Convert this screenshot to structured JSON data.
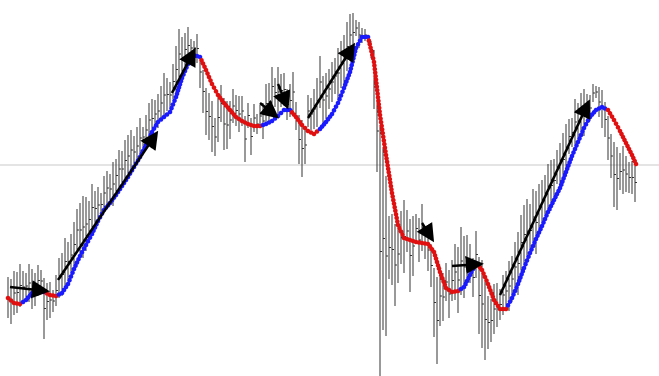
{
  "chart_data": {
    "type": "line",
    "title": "",
    "xlabel": "",
    "ylabel": "",
    "grid": false,
    "legend": "none",
    "colors": {
      "bars": "#333333",
      "up": "#1a1aff",
      "down": "#e01010",
      "arrow": "#000000",
      "level": "#c8c8c8"
    },
    "level_y": 165,
    "xlim": [
      0,
      640
    ],
    "ylim": [
      375,
      10
    ],
    "price": [
      [
        8,
        298
      ],
      [
        14,
        303
      ],
      [
        20,
        304
      ],
      [
        26,
        300
      ],
      [
        32,
        293
      ],
      [
        38,
        291
      ],
      [
        44,
        292
      ],
      [
        50,
        295
      ],
      [
        56,
        296
      ],
      [
        62,
        293
      ],
      [
        68,
        284
      ],
      [
        74,
        269
      ],
      [
        80,
        256
      ],
      [
        86,
        245
      ],
      [
        92,
        234
      ],
      [
        98,
        221
      ],
      [
        104,
        210
      ],
      [
        110,
        203
      ],
      [
        116,
        195
      ],
      [
        122,
        186
      ],
      [
        128,
        177
      ],
      [
        134,
        167
      ],
      [
        140,
        157
      ],
      [
        146,
        145
      ],
      [
        152,
        132
      ],
      [
        158,
        122
      ],
      [
        164,
        117
      ],
      [
        170,
        112
      ],
      [
        176,
        97
      ],
      [
        182,
        78
      ],
      [
        188,
        64
      ],
      [
        194,
        55
      ],
      [
        200,
        57
      ],
      [
        206,
        70
      ],
      [
        212,
        84
      ],
      [
        218,
        95
      ],
      [
        224,
        103
      ],
      [
        230,
        110
      ],
      [
        236,
        117
      ],
      [
        242,
        121
      ],
      [
        248,
        124
      ],
      [
        254,
        126
      ],
      [
        260,
        126
      ],
      [
        266,
        124
      ],
      [
        272,
        121
      ],
      [
        278,
        116
      ],
      [
        284,
        110
      ],
      [
        290,
        110
      ],
      [
        296,
        117
      ],
      [
        302,
        125
      ],
      [
        308,
        131
      ],
      [
        314,
        134
      ],
      [
        320,
        129
      ],
      [
        326,
        122
      ],
      [
        332,
        114
      ],
      [
        338,
        103
      ],
      [
        344,
        88
      ],
      [
        350,
        72
      ],
      [
        356,
        48
      ],
      [
        362,
        37
      ],
      [
        368,
        37
      ],
      [
        374,
        62
      ],
      [
        380,
        115
      ],
      [
        386,
        155
      ],
      [
        392,
        193
      ],
      [
        398,
        225
      ],
      [
        404,
        238
      ],
      [
        410,
        240
      ],
      [
        416,
        242
      ],
      [
        422,
        243
      ],
      [
        428,
        244
      ],
      [
        434,
        252
      ],
      [
        440,
        272
      ],
      [
        446,
        288
      ],
      [
        452,
        292
      ],
      [
        458,
        291
      ],
      [
        464,
        287
      ],
      [
        470,
        275
      ],
      [
        476,
        263
      ],
      [
        482,
        270
      ],
      [
        488,
        284
      ],
      [
        494,
        300
      ],
      [
        500,
        309
      ],
      [
        506,
        309
      ],
      [
        512,
        298
      ],
      [
        518,
        284
      ],
      [
        524,
        268
      ],
      [
        530,
        253
      ],
      [
        536,
        239
      ],
      [
        542,
        226
      ],
      [
        548,
        212
      ],
      [
        554,
        200
      ],
      [
        560,
        188
      ],
      [
        566,
        172
      ],
      [
        572,
        156
      ],
      [
        578,
        142
      ],
      [
        584,
        128
      ],
      [
        590,
        117
      ],
      [
        596,
        110
      ],
      [
        602,
        107
      ],
      [
        608,
        110
      ],
      [
        614,
        120
      ],
      [
        620,
        131
      ],
      [
        626,
        143
      ],
      [
        632,
        155
      ],
      [
        636,
        164
      ]
    ],
    "bars": [
      [
        8,
        318,
        277
      ],
      [
        11,
        324,
        279
      ],
      [
        14,
        315,
        271
      ],
      [
        17,
        313,
        272
      ],
      [
        20,
        307,
        264
      ],
      [
        23,
        303,
        271
      ],
      [
        26,
        299,
        273
      ],
      [
        29,
        302,
        264
      ],
      [
        32,
        309,
        269
      ],
      [
        35,
        306,
        273
      ],
      [
        38,
        296,
        265
      ],
      [
        41,
        292,
        270
      ],
      [
        44,
        339,
        278
      ],
      [
        47,
        320,
        283
      ],
      [
        50,
        318,
        282
      ],
      [
        53,
        312,
        290
      ],
      [
        56,
        306,
        275
      ],
      [
        59,
        298,
        258
      ],
      [
        62,
        296,
        253
      ],
      [
        65,
        285,
        238
      ],
      [
        68,
        281,
        242
      ],
      [
        71,
        276,
        234
      ],
      [
        74,
        267,
        222
      ],
      [
        77,
        251,
        209
      ],
      [
        80,
        257,
        203
      ],
      [
        83,
        258,
        196
      ],
      [
        86,
        251,
        197
      ],
      [
        89,
        238,
        201
      ],
      [
        92,
        231,
        184
      ],
      [
        95,
        226,
        191
      ],
      [
        98,
        223,
        187
      ],
      [
        101,
        216,
        193
      ],
      [
        104,
        210,
        176
      ],
      [
        107,
        205,
        171
      ],
      [
        110,
        204,
        174
      ],
      [
        113,
        206,
        162
      ],
      [
        116,
        192,
        159
      ],
      [
        119,
        188,
        150
      ],
      [
        122,
        187,
        151
      ],
      [
        125,
        181,
        140
      ],
      [
        128,
        177,
        135
      ],
      [
        131,
        170,
        130
      ],
      [
        134,
        168,
        136
      ],
      [
        137,
        165,
        127
      ],
      [
        140,
        158,
        118
      ],
      [
        143,
        147,
        127
      ],
      [
        146,
        145,
        115
      ],
      [
        149,
        137,
        103
      ],
      [
        152,
        138,
        99
      ],
      [
        155,
        128,
        100
      ],
      [
        158,
        128,
        94
      ],
      [
        161,
        120,
        86
      ],
      [
        164,
        117,
        73
      ],
      [
        167,
        111,
        78
      ],
      [
        170,
        108,
        82
      ],
      [
        173,
        99,
        64
      ],
      [
        176,
        93,
        46
      ],
      [
        179,
        79,
        29
      ],
      [
        182,
        78,
        37
      ],
      [
        185,
        66,
        33
      ],
      [
        188,
        64,
        27
      ],
      [
        191,
        57,
        39
      ],
      [
        194,
        55,
        41
      ],
      [
        197,
        63,
        34
      ],
      [
        200,
        88,
        56
      ],
      [
        203,
        113,
        70
      ],
      [
        206,
        135,
        88
      ],
      [
        209,
        140,
        93
      ],
      [
        212,
        152,
        101
      ],
      [
        215,
        156,
        118
      ],
      [
        218,
        142,
        93
      ],
      [
        221,
        122,
        85
      ],
      [
        224,
        150,
        98
      ],
      [
        227,
        149,
        101
      ],
      [
        230,
        139,
        101
      ],
      [
        233,
        123,
        89
      ],
      [
        236,
        126,
        95
      ],
      [
        239,
        132,
        96
      ],
      [
        242,
        126,
        96
      ],
      [
        245,
        162,
        116
      ],
      [
        248,
        128,
        103
      ],
      [
        251,
        155,
        118
      ],
      [
        254,
        132,
        104
      ],
      [
        257,
        134,
        114
      ],
      [
        260,
        127,
        105
      ],
      [
        263,
        139,
        103
      ],
      [
        266,
        123,
        84
      ],
      [
        269,
        122,
        83
      ],
      [
        272,
        106,
        67
      ],
      [
        275,
        107,
        78
      ],
      [
        278,
        117,
        67
      ],
      [
        281,
        107,
        74
      ],
      [
        284,
        106,
        73
      ],
      [
        287,
        120,
        89
      ],
      [
        290,
        117,
        84
      ],
      [
        293,
        112,
        72
      ],
      [
        296,
        130,
        102
      ],
      [
        299,
        164,
        115
      ],
      [
        302,
        177,
        120
      ],
      [
        305,
        164,
        126
      ],
      [
        308,
        127,
        95
      ],
      [
        311,
        130,
        98
      ],
      [
        314,
        129,
        89
      ],
      [
        317,
        127,
        78
      ],
      [
        320,
        108,
        56
      ],
      [
        323,
        124,
        76
      ],
      [
        326,
        119,
        73
      ],
      [
        329,
        109,
        69
      ],
      [
        332,
        102,
        62
      ],
      [
        335,
        94,
        58
      ],
      [
        338,
        98,
        48
      ],
      [
        341,
        88,
        41
      ],
      [
        344,
        85,
        35
      ],
      [
        347,
        71,
        22
      ],
      [
        350,
        56,
        14
      ],
      [
        353,
        52,
        13
      ],
      [
        356,
        36,
        20
      ],
      [
        359,
        48,
        22
      ],
      [
        362,
        43,
        28
      ],
      [
        365,
        41,
        29
      ],
      [
        368,
        43,
        36
      ],
      [
        371,
        58,
        41
      ],
      [
        374,
        109,
        50
      ],
      [
        377,
        172,
        90
      ],
      [
        380,
        376,
        127
      ],
      [
        383,
        330,
        147
      ],
      [
        386,
        336,
        176
      ],
      [
        389,
        279,
        216
      ],
      [
        392,
        285,
        214
      ],
      [
        395,
        306,
        224
      ],
      [
        398,
        283,
        225
      ],
      [
        401,
        264,
        211
      ],
      [
        404,
        273,
        200
      ],
      [
        407,
        252,
        210
      ],
      [
        410,
        292,
        219
      ],
      [
        413,
        276,
        216
      ],
      [
        416,
        243,
        214
      ],
      [
        419,
        262,
        218
      ],
      [
        422,
        251,
        204
      ],
      [
        425,
        259,
        229
      ],
      [
        428,
        271,
        229
      ],
      [
        431,
        287,
        244
      ],
      [
        434,
        337,
        268
      ],
      [
        437,
        364,
        277
      ],
      [
        440,
        326,
        266
      ],
      [
        443,
        321,
        273
      ],
      [
        446,
        301,
        263
      ],
      [
        449,
        318,
        270
      ],
      [
        452,
        301,
        260
      ],
      [
        455,
        300,
        244
      ],
      [
        458,
        313,
        247
      ],
      [
        461,
        295,
        227
      ],
      [
        464,
        298,
        236
      ],
      [
        467,
        286,
        235
      ],
      [
        470,
        283,
        244
      ],
      [
        473,
        297,
        258
      ],
      [
        476,
        278,
        231
      ],
      [
        479,
        334,
        257
      ],
      [
        482,
        348,
        260
      ],
      [
        485,
        360,
        279
      ],
      [
        488,
        349,
        296
      ],
      [
        491,
        342,
        299
      ],
      [
        494,
        334,
        284
      ],
      [
        497,
        327,
        283
      ],
      [
        500,
        320,
        289
      ],
      [
        503,
        315,
        275
      ],
      [
        506,
        311,
        271
      ],
      [
        509,
        311,
        261
      ],
      [
        512,
        302,
        256
      ],
      [
        515,
        292,
        242
      ],
      [
        518,
        295,
        232
      ],
      [
        521,
        270,
        215
      ],
      [
        524,
        264,
        205
      ],
      [
        527,
        263,
        199
      ],
      [
        530,
        257,
        204
      ],
      [
        533,
        245,
        189
      ],
      [
        536,
        254,
        191
      ],
      [
        539,
        234,
        184
      ],
      [
        542,
        222,
        180
      ],
      [
        545,
        214,
        175
      ],
      [
        548,
        208,
        164
      ],
      [
        551,
        211,
        160
      ],
      [
        554,
        202,
        159
      ],
      [
        557,
        184,
        150
      ],
      [
        560,
        183,
        143
      ],
      [
        563,
        186,
        133
      ],
      [
        566,
        175,
        124
      ],
      [
        569,
        154,
        119
      ],
      [
        572,
        147,
        118
      ],
      [
        575,
        145,
        99
      ],
      [
        578,
        140,
        103
      ],
      [
        581,
        135,
        93
      ],
      [
        584,
        136,
        89
      ],
      [
        587,
        126,
        94
      ],
      [
        590,
        121,
        95
      ],
      [
        593,
        102,
        84
      ],
      [
        596,
        98,
        86
      ],
      [
        599,
        117,
        87
      ],
      [
        602,
        128,
        90
      ],
      [
        605,
        137,
        102
      ],
      [
        608,
        160,
        116
      ],
      [
        611,
        178,
        134
      ],
      [
        614,
        207,
        142
      ],
      [
        617,
        210,
        147
      ],
      [
        620,
        190,
        153
      ],
      [
        623,
        194,
        146
      ],
      [
        626,
        192,
        156
      ],
      [
        629,
        193,
        162
      ],
      [
        632,
        194,
        161
      ],
      [
        635,
        202,
        163
      ]
    ],
    "signals": [
      {
        "from": [
          10,
          287
        ],
        "to": [
          46,
          291
        ]
      },
      {
        "from": [
          58,
          280
        ],
        "to": [
          156,
          134
        ]
      },
      {
        "from": [
          172,
          93
        ],
        "to": [
          194,
          51
        ]
      },
      {
        "from": [
          260,
          103
        ],
        "to": [
          276,
          116
        ]
      },
      {
        "from": [
          278,
          84
        ],
        "to": [
          287,
          106
        ]
      },
      {
        "from": [
          308,
          118
        ],
        "to": [
          353,
          46
        ]
      },
      {
        "from": [
          422,
          223
        ],
        "to": [
          432,
          239
        ]
      },
      {
        "from": [
          452,
          266
        ],
        "to": [
          480,
          264
        ]
      },
      {
        "from": [
          500,
          295
        ],
        "to": [
          588,
          103
        ]
      }
    ]
  }
}
